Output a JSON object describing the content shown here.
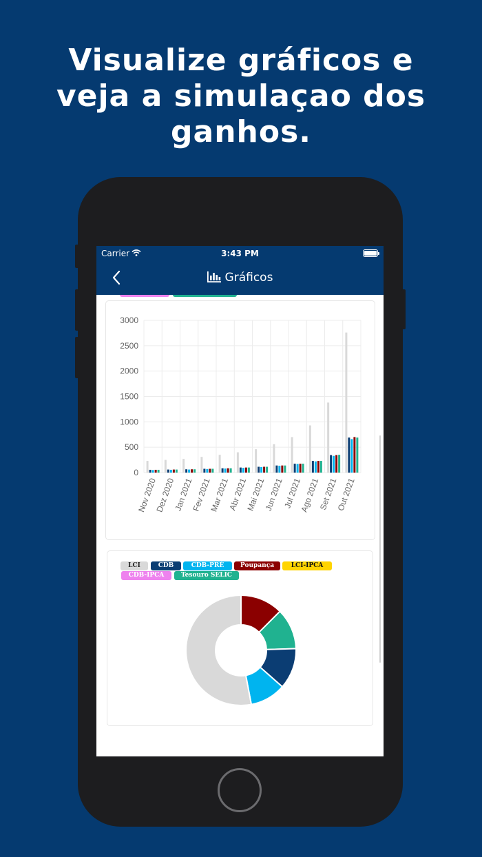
{
  "headline": {
    "line1": "Visualize gráficos e",
    "line2": "veja a simulaçao dos",
    "line3": "ganhos."
  },
  "statusbar": {
    "carrier": "Carrier",
    "time": "3:43 PM"
  },
  "navbar": {
    "title": "Gráficos",
    "title_icon": "bar-chart-icon",
    "back_icon": "chevron-left-icon"
  },
  "colors": {
    "brand": "#053a70",
    "LCI": "#d9d9d9",
    "CDB": "#0b3d73",
    "CDB-PRÉ": "#00b4ef",
    "Poupança": "#8b0000",
    "LCI-IPCA": "#ffd400",
    "CDB-IPCA": "#ee82ee",
    "Tesouro SELIC": "#20b290"
  },
  "legend": [
    "LCI",
    "CDB",
    "CDB-PRÉ",
    "Poupança",
    "LCI-IPCA",
    "CDB-IPCA",
    "Tesouro SELIC"
  ],
  "chart_data": [
    {
      "type": "bar",
      "categories": [
        "Nov 2020",
        "Dez 2020",
        "Jan 2021",
        "Fev 2021",
        "Mar 2021",
        "Abr 2021",
        "Mai 2021",
        "Jun 2021",
        "Jul 2021",
        "Ago 2021",
        "Set 2021",
        "Out 2021"
      ],
      "ylim": [
        0,
        3000
      ],
      "yticks": [
        "3000",
        "2500",
        "2000",
        "1500",
        "1000",
        "500",
        "0"
      ],
      "grid": true,
      "series": [
        {
          "name": "LCI",
          "values": [
            230,
            250,
            270,
            310,
            350,
            400,
            460,
            560,
            700,
            930,
            1380,
            2760
          ]
        },
        {
          "name": "CDB",
          "values": [
            55,
            60,
            65,
            75,
            85,
            100,
            115,
            140,
            175,
            230,
            345,
            690
          ]
        },
        {
          "name": "CDB-PRÉ",
          "values": [
            50,
            55,
            60,
            70,
            80,
            95,
            110,
            135,
            170,
            220,
            330,
            660
          ]
        },
        {
          "name": "Poupança",
          "values": [
            55,
            60,
            65,
            75,
            85,
            100,
            115,
            140,
            175,
            230,
            345,
            700
          ]
        },
        {
          "name": "Tesouro SELIC",
          "values": [
            55,
            60,
            65,
            75,
            85,
            100,
            115,
            140,
            175,
            230,
            350,
            690
          ]
        }
      ]
    },
    {
      "type": "pie",
      "labels": [
        "Poupança",
        "Tesouro SELIC",
        "CDB",
        "CDB-PRÉ",
        "LCI"
      ],
      "values": [
        12.5,
        12,
        12,
        10.5,
        53
      ]
    }
  ]
}
